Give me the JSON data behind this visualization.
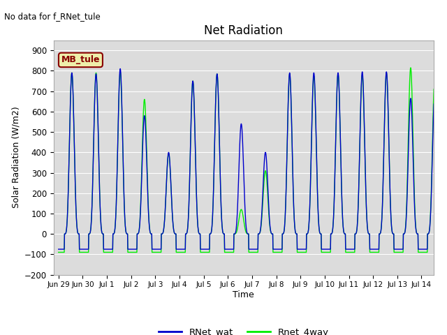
{
  "title": "Net Radiation",
  "xlabel": "Time",
  "ylabel": "Solar Radiation (W/m2)",
  "no_data_text": "No data for f_RNet_tule",
  "legend_label1": "RNet_wat",
  "legend_label2": "Rnet_4way",
  "legend_box_label": "MB_tule",
  "ylim": [
    -200,
    950
  ],
  "yticks": [
    -200,
    -100,
    0,
    100,
    200,
    300,
    400,
    500,
    600,
    700,
    800,
    900
  ],
  "color_blue": "#0000CC",
  "color_green": "#00EE00",
  "bg_color": "#DCDCDC",
  "legend_box_facecolor": "#EEEEAA",
  "legend_box_edgecolor": "#880000",
  "tick_labels": [
    "Jun 29",
    "Jun 30",
    "Jul 1",
    "Jul 2",
    "Jul 3",
    "Jul 4",
    "Jul 5",
    "Jul 6",
    "Jul 7",
    "Jul 8",
    "Jul 9",
    "Jul 10",
    "Jul 11",
    "Jul 12",
    "Jul 13",
    "Jul 14"
  ],
  "peak_blue": [
    790,
    785,
    810,
    580,
    400,
    750,
    785,
    540,
    400,
    790,
    790,
    790,
    795,
    795,
    665,
    700
  ],
  "peak_green": [
    790,
    790,
    795,
    660,
    395,
    750,
    785,
    120,
    310,
    785,
    775,
    785,
    780,
    790,
    815,
    780
  ],
  "night_blue": -75,
  "night_green": -90,
  "t_rise": 6.0,
  "t_set": 20.5,
  "sharpness": 4.0
}
